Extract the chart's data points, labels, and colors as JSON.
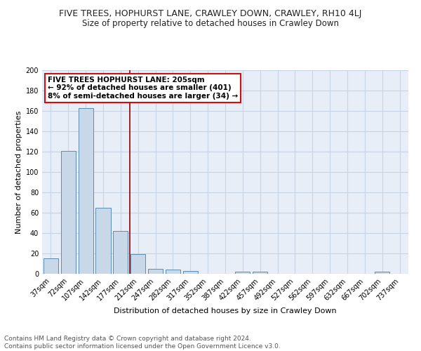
{
  "title": "FIVE TREES, HOPHURST LANE, CRAWLEY DOWN, CRAWLEY, RH10 4LJ",
  "subtitle": "Size of property relative to detached houses in Crawley Down",
  "xlabel": "Distribution of detached houses by size in Crawley Down",
  "ylabel": "Number of detached properties",
  "bar_labels": [
    "37sqm",
    "72sqm",
    "107sqm",
    "142sqm",
    "177sqm",
    "212sqm",
    "247sqm",
    "282sqm",
    "317sqm",
    "352sqm",
    "387sqm",
    "422sqm",
    "457sqm",
    "492sqm",
    "527sqm",
    "562sqm",
    "597sqm",
    "632sqm",
    "667sqm",
    "702sqm",
    "737sqm"
  ],
  "bar_values": [
    15,
    121,
    163,
    65,
    42,
    19,
    5,
    4,
    3,
    0,
    0,
    2,
    2,
    0,
    0,
    0,
    0,
    0,
    0,
    2,
    0
  ],
  "bar_color": "#c8d8e8",
  "bar_edge_color": "#5b8db0",
  "grid_color": "#c8d4e4",
  "bg_color": "#e8eef8",
  "vline_color": "#991111",
  "annotation_text": "FIVE TREES HOPHURST LANE: 205sqm\n← 92% of detached houses are smaller (401)\n8% of semi-detached houses are larger (34) →",
  "annotation_box_color": "#ffffff",
  "annotation_box_edge": "#cc1111",
  "ylim": [
    0,
    200
  ],
  "yticks": [
    0,
    20,
    40,
    60,
    80,
    100,
    120,
    140,
    160,
    180,
    200
  ],
  "footer": "Contains HM Land Registry data © Crown copyright and database right 2024.\nContains public sector information licensed under the Open Government Licence v3.0.",
  "title_fontsize": 9,
  "subtitle_fontsize": 8.5,
  "label_fontsize": 8,
  "tick_fontsize": 7,
  "footer_fontsize": 6.5,
  "annot_fontsize": 7.5
}
